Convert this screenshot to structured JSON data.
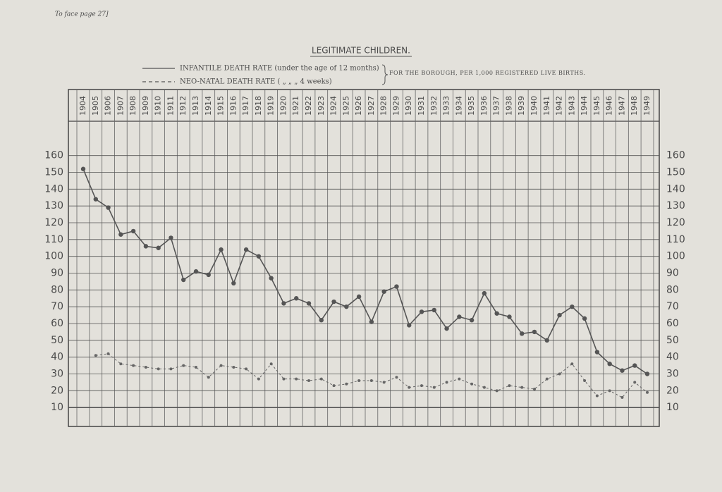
{
  "page_note": "To face page 27]",
  "chart_data": {
    "type": "line",
    "title": "LEGITIMATE CHILDREN.",
    "subtitle": "FOR THE BOROUGH, PER 1,000 REGISTERED LIVE BIRTHS.",
    "categories": [
      "1904",
      "1905",
      "1906",
      "1907",
      "1908",
      "1909",
      "1910",
      "1911",
      "1912",
      "1913",
      "1914",
      "1915",
      "1916",
      "1917",
      "1918",
      "1919",
      "1920",
      "1921",
      "1922",
      "1923",
      "1924",
      "1925",
      "1926",
      "1927",
      "1928",
      "1929",
      "1930",
      "1931",
      "1932",
      "1933",
      "1934",
      "1935",
      "1936",
      "1937",
      "1938",
      "1939",
      "1940",
      "1941",
      "1942",
      "1943",
      "1944",
      "1945",
      "1946",
      "1947",
      "1948",
      "1949"
    ],
    "series": [
      {
        "name": "INFANTILE DEATH RATE (under the age of 12 months)",
        "color": "#555555",
        "dash": "solid",
        "values": [
          152,
          134,
          129,
          113,
          115,
          106,
          105,
          111,
          86,
          91,
          89,
          104,
          84,
          104,
          100,
          87,
          72,
          75,
          72,
          62,
          73,
          70,
          76,
          61,
          79,
          82,
          59,
          67,
          68,
          57,
          64,
          62,
          78,
          66,
          64,
          54,
          55,
          50,
          65,
          70,
          63,
          43,
          36,
          32,
          35,
          30
        ]
      },
      {
        "name": "NEO-NATAL DEATH RATE ( „ „ „ 4 weeks)",
        "color": "#666666",
        "dash": "dashed",
        "values": [
          null,
          41,
          42,
          36,
          35,
          34,
          33,
          33,
          35,
          34,
          28,
          35,
          34,
          33,
          27,
          36,
          27,
          27,
          26,
          27,
          23,
          24,
          26,
          26,
          25,
          28,
          22,
          23,
          22,
          25,
          27,
          24,
          22,
          20,
          23,
          22,
          21,
          27,
          30,
          36,
          26,
          17,
          20,
          16,
          25,
          19
        ]
      }
    ],
    "ylim": [
      0,
      180
    ],
    "yticks": [
      10,
      20,
      30,
      40,
      50,
      60,
      70,
      80,
      90,
      100,
      110,
      120,
      130,
      140,
      150,
      160
    ],
    "grid": true
  }
}
